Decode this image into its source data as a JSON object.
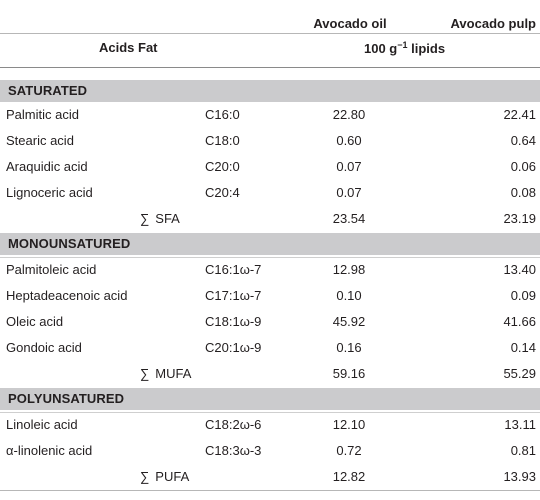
{
  "header": {
    "col_oil": "Avocado oil",
    "col_pulp": "Avocado pulp",
    "col_acids": "Acids Fat",
    "units_prefix": "100 g",
    "units_exp": "−1",
    "units_suffix": " lipids"
  },
  "sections": [
    {
      "title": "SATURATED",
      "rows": [
        {
          "name": "Palmitic acid",
          "code": "C16:0",
          "oil": "22.80",
          "pulp": "22.41"
        },
        {
          "name": "Stearic acid",
          "code": "C18:0",
          "oil": "0.60",
          "pulp": "0.64"
        },
        {
          "name": "Araquidic acid",
          "code": "C20:0",
          "oil": "0.07",
          "pulp": "0.06"
        },
        {
          "name": "Lignoceric acid",
          "code": "C20:4",
          "oil": "0.07",
          "pulp": "0.08"
        }
      ],
      "sum": {
        "sign": "∑",
        "label": "SFA",
        "oil": "23.54",
        "pulp": "23.19"
      }
    },
    {
      "title": "MONOUNSATURED",
      "rows": [
        {
          "name": "Palmitoleic acid",
          "code": "C16:1ω-7",
          "oil": "12.98",
          "pulp": "13.40"
        },
        {
          "name": "Heptadeacenoic acid",
          "code": "C17:1ω-7",
          "oil": "0.10",
          "pulp": "0.09"
        },
        {
          "name": "Oleic acid",
          "code": "C18:1ω-9",
          "oil": "45.92",
          "pulp": "41.66"
        },
        {
          "name": "Gondoic acid",
          "code": "C20:1ω-9",
          "oil": "0.16",
          "pulp": "0.14"
        }
      ],
      "sum": {
        "sign": "∑",
        "label": "MUFA",
        "oil": "59.16",
        "pulp": "55.29"
      }
    },
    {
      "title": "POLYUNSATURED",
      "rows": [
        {
          "name": "Linoleic acid",
          "code": "C18:2ω-6",
          "oil": "12.10",
          "pulp": "13.11"
        },
        {
          "name": "α-linolenic acid",
          "code": "C18:3ω-3",
          "oil": "0.72",
          "pulp": "0.81"
        }
      ],
      "sum": {
        "sign": "∑",
        "label": "PUFA",
        "oil": "12.82",
        "pulp": "13.93"
      }
    }
  ]
}
